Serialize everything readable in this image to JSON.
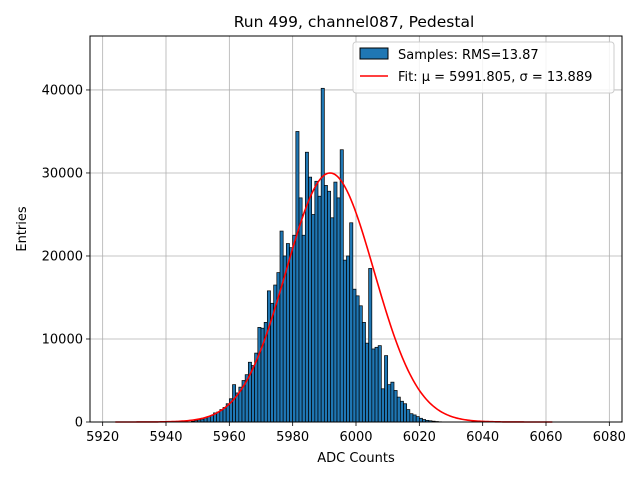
{
  "chart_data": {
    "type": "bar",
    "title": "Run 499, channel087, Pedestal",
    "xlabel": "ADC Counts",
    "ylabel": "Entries",
    "xlim": [
      5916,
      6084
    ],
    "ylim": [
      0,
      46500
    ],
    "xticks": [
      5920,
      5940,
      5960,
      5980,
      6000,
      6020,
      6040,
      6060,
      6080
    ],
    "yticks": [
      0,
      10000,
      20000,
      30000,
      40000
    ],
    "grid": true,
    "legend_position": "top-right",
    "bar_color": "#1f77b4",
    "bar_edge_color": "#000000",
    "fit_color": "#ff0000",
    "histogram": {
      "name": "Samples: RMS=13.87",
      "bin_width": 1,
      "bins_start": [
        5948,
        5949,
        5950,
        5951,
        5952,
        5953,
        5954,
        5955,
        5956,
        5957,
        5958,
        5959,
        5960,
        5961,
        5962,
        5963,
        5964,
        5965,
        5966,
        5967,
        5968,
        5969,
        5970,
        5971,
        5972,
        5973,
        5974,
        5975,
        5976,
        5977,
        5978,
        5979,
        5980,
        5981,
        5982,
        5983,
        5984,
        5985,
        5986,
        5987,
        5988,
        5989,
        5990,
        5991,
        5992,
        5993,
        5994,
        5995,
        5996,
        5997,
        5998,
        5999,
        6000,
        6001,
        6002,
        6003,
        6004,
        6005,
        6006,
        6007,
        6008,
        6009,
        6010,
        6011,
        6012,
        6013,
        6014,
        6015,
        6016,
        6017,
        6018,
        6019,
        6020,
        6021,
        6022,
        6023,
        6024,
        6025,
        6026,
        6027,
        6028,
        6029,
        6030,
        6031,
        6032,
        6033,
        6034,
        6035,
        6036,
        6037,
        6038,
        6039,
        6040,
        6041,
        6042
      ],
      "counts": [
        100,
        180,
        250,
        350,
        500,
        650,
        800,
        1100,
        1200,
        1500,
        1750,
        2200,
        2800,
        4500,
        3500,
        4200,
        5000,
        5700,
        7200,
        6800,
        8300,
        11400,
        11300,
        12000,
        15800,
        14300,
        16500,
        18000,
        23000,
        20000,
        21500,
        21000,
        22500,
        35000,
        27000,
        22500,
        32500,
        29500,
        25000,
        29000,
        27200,
        40200,
        28500,
        27800,
        24600,
        28900,
        27000,
        32800,
        19500,
        20000,
        24000,
        16000,
        15200,
        14000,
        12000,
        9500,
        18500,
        8800,
        9000,
        9200,
        4000,
        8000,
        4500,
        4800,
        3800,
        3000,
        2500,
        2200,
        1500,
        1000,
        850,
        650,
        450,
        300,
        200,
        150,
        100,
        60,
        30,
        15,
        8,
        4,
        2,
        1,
        0,
        0,
        0,
        0,
        0,
        0,
        0,
        0,
        0,
        0,
        0
      ]
    },
    "fit": {
      "name": "Fit: μ = 5991.805, σ = 13.889",
      "mu": 5991.805,
      "sigma": 13.889,
      "amplitude": 30000,
      "x_range": [
        5924,
        6062
      ]
    }
  }
}
